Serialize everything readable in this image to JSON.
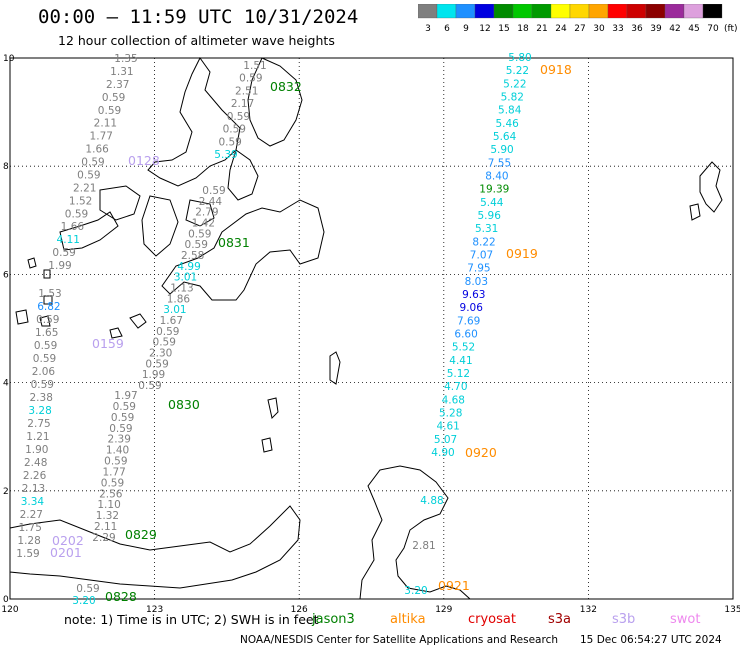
{
  "header": {
    "title": "00:00 – 11:59 UTC 10/31/2024",
    "subtitle": "12 hour collection of altimeter wave heights"
  },
  "legend": {
    "unit": "(ft)",
    "bins": [
      {
        "label": "3",
        "color": "#7f7f7f"
      },
      {
        "label": "6",
        "color": "#00e5ee"
      },
      {
        "label": "9",
        "color": "#1e90ff"
      },
      {
        "label": "12",
        "color": "#0000e0"
      },
      {
        "label": "15",
        "color": "#008b00"
      },
      {
        "label": "18",
        "color": "#00c800"
      },
      {
        "label": "21",
        "color": "#009a00"
      },
      {
        "label": "24",
        "color": "#ffff00"
      },
      {
        "label": "27",
        "color": "#ffd700"
      },
      {
        "label": "30",
        "color": "#ffa500"
      },
      {
        "label": "33",
        "color": "#ff0000"
      },
      {
        "label": "36",
        "color": "#cd0000"
      },
      {
        "label": "39",
        "color": "#8b0000"
      },
      {
        "label": "42",
        "color": "#9b2a9b"
      },
      {
        "label": "45",
        "color": "#dda0dd"
      },
      {
        "label": "70",
        "color": "#000000"
      }
    ]
  },
  "axes": {
    "x_ticks": [
      "120",
      "123",
      "126",
      "129",
      "132",
      "135"
    ],
    "y_ticks": [
      "0",
      "2",
      "4",
      "6",
      "8",
      "10"
    ]
  },
  "tracks": [
    {
      "id": "0918",
      "label": "0918",
      "label_color": "#ff8c00",
      "dot_color": "#ff8c00",
      "values": [
        "5.80",
        "5.22",
        "5.22",
        "5.82",
        "5.84",
        "5.46",
        "5.64",
        "5.90",
        "7.55",
        "8.40",
        "19.39",
        "5.44",
        "5.96",
        "5.31",
        "8.22",
        "7.07",
        "7.95",
        "8.03",
        "9.63",
        "9.06",
        "7.69",
        "6.60",
        "5.52",
        "4.41",
        "5.12",
        "4.70",
        "4.68",
        "5.28",
        "4.61",
        "5.07",
        "4.90"
      ]
    },
    {
      "id": "0919",
      "label": "0919",
      "label_color": "#ff8c00"
    },
    {
      "id": "0920",
      "label": "0920",
      "label_color": "#ff8c00"
    },
    {
      "id": "0921",
      "label": "0921",
      "label_color": "#ff8c00",
      "values": [
        "4.88",
        "2.81",
        "3.20"
      ]
    },
    {
      "id": "0128",
      "label": "0128",
      "label_color": "#b9a0ee",
      "values": [
        "1.35",
        "1.31",
        "2.37",
        "0.59",
        "0.59",
        "2.11",
        "1.77",
        "1.66",
        "0.59",
        "0.59",
        "2.21",
        "1.52",
        "0.59",
        "1.66",
        "4.11",
        "0.59",
        "1.99"
      ]
    },
    {
      "id": "0159",
      "label": "0159",
      "label_color": "#b9a0ee",
      "values": [
        "1.53",
        "6.82",
        "0.59",
        "1.65",
        "0.59",
        "0.59",
        "2.06",
        "0.59",
        "2.38",
        "3.28",
        "2.75",
        "1.21",
        "1.90",
        "2.48",
        "2.26",
        "2.13",
        "3.34",
        "2.27",
        "1.75",
        "1.28",
        "1.59"
      ]
    },
    {
      "id": "0201",
      "label": "0201",
      "label_color": "#b9a0ee"
    },
    {
      "id": "0202",
      "label": "0202",
      "label_color": "#b9a0ee"
    },
    {
      "id": "0832",
      "label": "0832",
      "label_color": "#008000",
      "values": [
        "1.51",
        "0.59",
        "2.51",
        "2.17",
        "0.59",
        "0.59",
        "0.59",
        "5.39"
      ]
    },
    {
      "id": "0831",
      "label": "0831",
      "label_color": "#008000",
      "values": [
        "0.59",
        "2.44",
        "2.79",
        "1.42",
        "0.59",
        "0.59",
        "2.58",
        "4.99",
        "3.01",
        "1.13",
        "1.86",
        "3.01",
        "1.67",
        "0.59",
        "0.59",
        "2.30",
        "0.59",
        "1.99",
        "0.59"
      ]
    },
    {
      "id": "0830",
      "label": "0830",
      "label_color": "#008000",
      "values": [
        "1.97",
        "0.59",
        "0.59",
        "0.59",
        "2.39",
        "1.40",
        "0.59",
        "1.77",
        "0.59",
        "2.56",
        "1.10",
        "1.32",
        "2.11",
        "2.29"
      ]
    },
    {
      "id": "0829",
      "label": "0829",
      "label_color": "#008000"
    },
    {
      "id": "0828",
      "label": "0828",
      "label_color": "#008000",
      "values": [
        "0.59",
        "3.20"
      ]
    }
  ],
  "footer": {
    "note": "note: 1) Time is in UTC; 2) SWH is in feet",
    "satellites": [
      {
        "name": "jason3",
        "color": "#008000"
      },
      {
        "name": "altika",
        "color": "#ff8c00"
      },
      {
        "name": "cryosat",
        "color": "#e00000"
      },
      {
        "name": "s3a",
        "color": "#a00000"
      },
      {
        "name": "s3b",
        "color": "#b9a0ee"
      },
      {
        "name": "swot",
        "color": "#ee88ee"
      }
    ],
    "credit": "NOAA/NESDIS Center for Satellite Applications and Research",
    "timestamp": "15 Dec 06:54:27 UTC 2024"
  }
}
